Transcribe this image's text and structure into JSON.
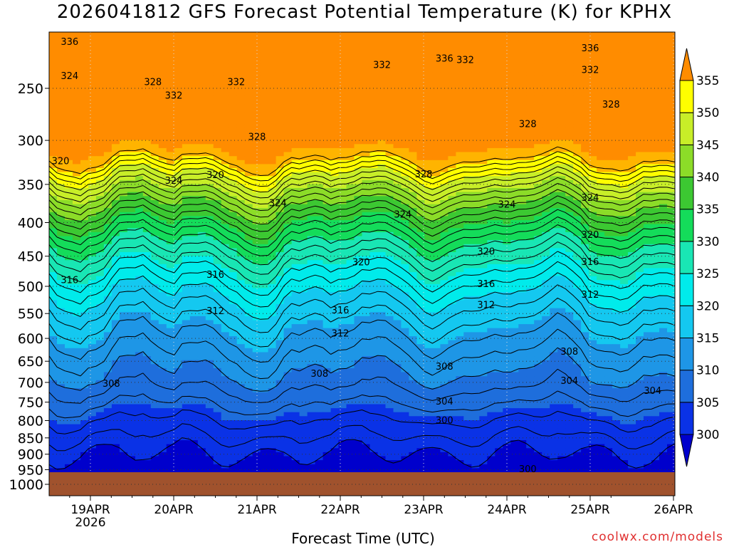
{
  "credit": "coolwx.com/models",
  "chart_data": {
    "type": "heatmap",
    "title": "2026041812 GFS Forecast Potential Temperature (K) for KPHX",
    "xlabel": "Forecast Time (UTC)",
    "ylabel": "",
    "x_ticks": [
      "19APR",
      "20APR",
      "21APR",
      "22APR",
      "23APR",
      "24APR",
      "25APR",
      "26APR"
    ],
    "x_year": "2026",
    "y_ticks": [
      250,
      300,
      350,
      400,
      450,
      500,
      550,
      600,
      650,
      700,
      750,
      800,
      850,
      900,
      950,
      1000
    ],
    "ylim": [
      1000,
      200
    ],
    "grid": true,
    "colorbar": {
      "ticks": [
        300,
        305,
        310,
        315,
        320,
        325,
        330,
        335,
        340,
        345,
        350,
        355
      ],
      "colors": [
        "#0000cc",
        "#0a32e6",
        "#1e6edc",
        "#1e96e6",
        "#14c8f0",
        "#00ebeb",
        "#19e6b4",
        "#14dc5a",
        "#3cc832",
        "#8cdc28",
        "#c8ee28",
        "#ffff00",
        "#ffb400",
        "#ff8c00"
      ]
    },
    "ground_color": "#a0522d",
    "contour_levels": [
      300,
      304,
      308,
      312,
      316,
      320,
      324,
      328,
      332,
      336
    ],
    "contour_labels": [
      {
        "text": "336",
        "t": "18APR 18Z",
        "p": 212
      },
      {
        "text": "336",
        "t": "23APR 06Z",
        "p": 225
      },
      {
        "text": "336",
        "t": "25APR 00Z",
        "p": 217
      },
      {
        "text": "332",
        "t": "20APR 00Z",
        "p": 256
      },
      {
        "text": "332",
        "t": "20APR 18Z",
        "p": 244
      },
      {
        "text": "332",
        "t": "22APR 12Z",
        "p": 230
      },
      {
        "text": "332",
        "t": "23APR 12Z",
        "p": 226
      },
      {
        "text": "332",
        "t": "25APR 00Z",
        "p": 234
      },
      {
        "text": "328",
        "t": "19APR 18Z",
        "p": 244
      },
      {
        "text": "328",
        "t": "21APR 00Z",
        "p": 296
      },
      {
        "text": "328",
        "t": "23APR 00Z",
        "p": 337
      },
      {
        "text": "328",
        "t": "24APR 06Z",
        "p": 283
      },
      {
        "text": "328",
        "t": "25APR 06Z",
        "p": 264
      },
      {
        "text": "324",
        "t": "18APR 18Z",
        "p": 239
      },
      {
        "text": "324",
        "t": "20APR 00Z",
        "p": 345
      },
      {
        "text": "324",
        "t": "21APR 06Z",
        "p": 373
      },
      {
        "text": "324",
        "t": "22APR 18Z",
        "p": 388
      },
      {
        "text": "324",
        "t": "24APR 00Z",
        "p": 375
      },
      {
        "text": "324",
        "t": "25APR 00Z",
        "p": 366
      },
      {
        "text": "320",
        "t": "18APR 12Z",
        "p": 322
      },
      {
        "text": "320",
        "t": "20APR 12Z",
        "p": 338
      },
      {
        "text": "320",
        "t": "22APR 06Z",
        "p": 459
      },
      {
        "text": "320",
        "t": "23APR 18Z",
        "p": 442
      },
      {
        "text": "320",
        "t": "25APR 00Z",
        "p": 417
      },
      {
        "text": "316",
        "t": "18APR 18Z",
        "p": 488
      },
      {
        "text": "316",
        "t": "20APR 12Z",
        "p": 479
      },
      {
        "text": "316",
        "t": "22APR 00Z",
        "p": 543
      },
      {
        "text": "316",
        "t": "23APR 18Z",
        "p": 495
      },
      {
        "text": "316",
        "t": "25APR 00Z",
        "p": 458
      },
      {
        "text": "312",
        "t": "20APR 12Z",
        "p": 544
      },
      {
        "text": "312",
        "t": "22APR 00Z",
        "p": 589
      },
      {
        "text": "312",
        "t": "23APR 18Z",
        "p": 533
      },
      {
        "text": "312",
        "t": "25APR 00Z",
        "p": 514
      },
      {
        "text": "308",
        "t": "19APR 06Z",
        "p": 702
      },
      {
        "text": "308",
        "t": "21APR 18Z",
        "p": 678
      },
      {
        "text": "308",
        "t": "23APR 06Z",
        "p": 661
      },
      {
        "text": "308",
        "t": "24APR 18Z",
        "p": 627
      },
      {
        "text": "304",
        "t": "23APR 06Z",
        "p": 747
      },
      {
        "text": "304",
        "t": "24APR 18Z",
        "p": 695
      },
      {
        "text": "304",
        "t": "25APR 18Z",
        "p": 720
      },
      {
        "text": "300",
        "t": "23APR 06Z",
        "p": 798
      },
      {
        "text": "300",
        "t": "24APR 06Z",
        "p": 947
      }
    ]
  }
}
